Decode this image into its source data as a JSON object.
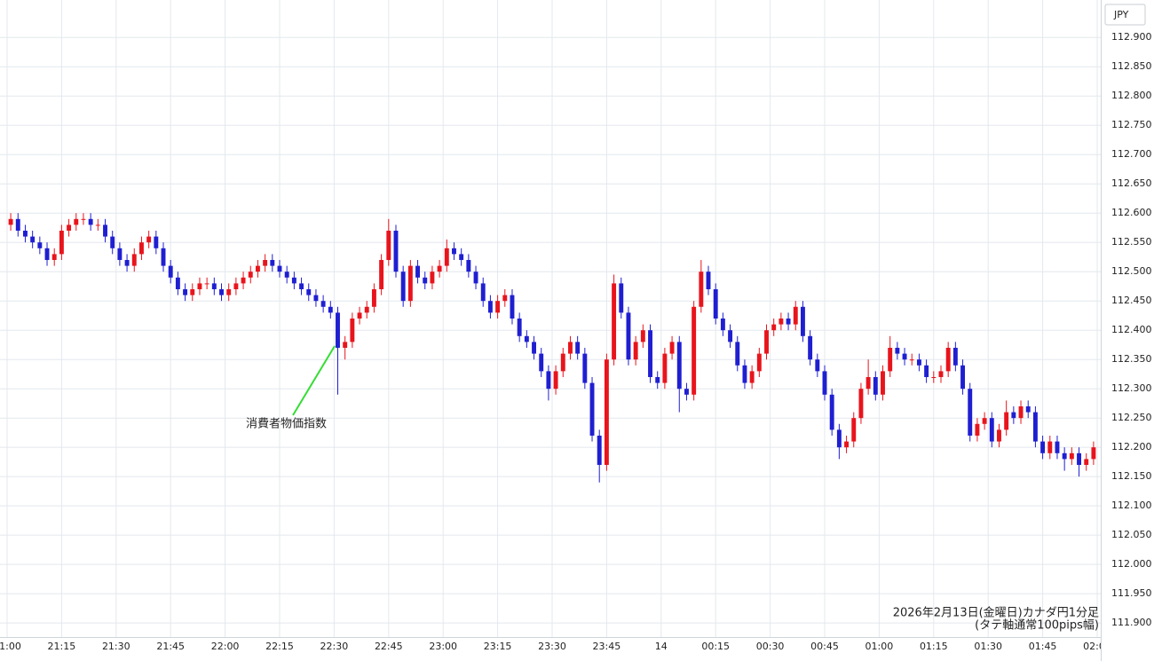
{
  "chart_data": {
    "type": "candlestick",
    "currency_label": "JPY",
    "annotation": "消費者物価指数",
    "notes": [
      "2026年2月13日(金曜日)カナダ円1分足",
      "(タテ軸通常100pips幅)"
    ],
    "up_color": "#e8141c",
    "down_color": "#1f1fd1",
    "grid": true,
    "xlim": [
      0,
      300
    ],
    "xticks": [
      {
        "value": 0,
        "label": "21:00"
      },
      {
        "value": 15,
        "label": "21:15"
      },
      {
        "value": 30,
        "label": "21:30"
      },
      {
        "value": 45,
        "label": "21:45"
      },
      {
        "value": 60,
        "label": "22:00"
      },
      {
        "value": 75,
        "label": "22:15"
      },
      {
        "value": 90,
        "label": "22:30"
      },
      {
        "value": 105,
        "label": "22:45"
      },
      {
        "value": 120,
        "label": "23:00"
      },
      {
        "value": 135,
        "label": "23:15"
      },
      {
        "value": 150,
        "label": "23:30"
      },
      {
        "value": 165,
        "label": "23:45"
      },
      {
        "value": 180,
        "label": "14"
      },
      {
        "value": 195,
        "label": "00:15"
      },
      {
        "value": 210,
        "label": "00:30"
      },
      {
        "value": 225,
        "label": "00:45"
      },
      {
        "value": 240,
        "label": "01:00"
      },
      {
        "value": 255,
        "label": "01:15"
      },
      {
        "value": 270,
        "label": "01:30"
      },
      {
        "value": 285,
        "label": "01:45"
      },
      {
        "value": 300,
        "label": "02:00"
      }
    ],
    "ylim": [
      111.876,
      112.964
    ],
    "yticks": [
      {
        "value": 111.9,
        "label": "111.900"
      },
      {
        "value": 111.95,
        "label": "111.950"
      },
      {
        "value": 112.0,
        "label": "112.000"
      },
      {
        "value": 112.05,
        "label": "112.050"
      },
      {
        "value": 112.1,
        "label": "112.100"
      },
      {
        "value": 112.15,
        "label": "112.150"
      },
      {
        "value": 112.2,
        "label": "112.200"
      },
      {
        "value": 112.25,
        "label": "112.250"
      },
      {
        "value": 112.3,
        "label": "112.300"
      },
      {
        "value": 112.35,
        "label": "112.350"
      },
      {
        "value": 112.4,
        "label": "112.400"
      },
      {
        "value": 112.45,
        "label": "112.450"
      },
      {
        "value": 112.5,
        "label": "112.500"
      },
      {
        "value": 112.55,
        "label": "112.550"
      },
      {
        "value": 112.6,
        "label": "112.600"
      },
      {
        "value": 112.65,
        "label": "112.650"
      },
      {
        "value": 112.7,
        "label": "112.700"
      },
      {
        "value": 112.75,
        "label": "112.750"
      },
      {
        "value": 112.8,
        "label": "112.800"
      },
      {
        "value": 112.85,
        "label": "112.850"
      },
      {
        "value": 112.9,
        "label": "112.900"
      }
    ],
    "x": [
      0,
      2,
      4,
      6,
      8,
      10,
      12,
      14,
      16,
      18,
      20,
      22,
      24,
      26,
      28,
      30,
      32,
      34,
      36,
      38,
      40,
      42,
      44,
      46,
      48,
      50,
      52,
      54,
      56,
      58,
      60,
      62,
      64,
      66,
      68,
      70,
      72,
      74,
      76,
      78,
      80,
      82,
      84,
      86,
      88,
      90,
      92,
      94,
      96,
      98,
      100,
      102,
      104,
      106,
      108,
      110,
      112,
      114,
      116,
      118,
      120,
      122,
      124,
      126,
      128,
      130,
      132,
      134,
      136,
      138,
      140,
      142,
      144,
      146,
      148,
      150,
      152,
      154,
      156,
      158,
      160,
      162,
      164,
      166,
      168,
      170,
      172,
      174,
      176,
      178,
      180,
      182,
      184,
      186,
      188,
      190,
      192,
      194,
      196,
      198,
      200,
      202,
      204,
      206,
      208,
      210,
      212,
      214,
      216,
      218,
      220,
      222,
      224,
      226,
      228,
      230,
      232,
      234,
      236,
      238,
      240,
      242,
      244,
      246,
      248,
      250,
      252,
      254,
      256,
      258,
      260,
      262,
      264,
      266,
      268,
      270,
      272,
      274,
      276,
      278,
      280,
      282,
      284,
      286,
      288,
      290,
      292,
      294,
      296,
      298
    ],
    "ohlc": [
      [
        112.58,
        112.6,
        112.57,
        112.59
      ],
      [
        112.59,
        112.6,
        112.56,
        112.57
      ],
      [
        112.57,
        112.58,
        112.55,
        112.56
      ],
      [
        112.56,
        112.57,
        112.54,
        112.55
      ],
      [
        112.55,
        112.56,
        112.53,
        112.54
      ],
      [
        112.54,
        112.55,
        112.51,
        112.52
      ],
      [
        112.52,
        112.54,
        112.51,
        112.53
      ],
      [
        112.53,
        112.58,
        112.52,
        112.57
      ],
      [
        112.57,
        112.59,
        112.56,
        112.58
      ],
      [
        112.58,
        112.6,
        112.57,
        112.59
      ],
      [
        112.59,
        112.6,
        112.58,
        112.59
      ],
      [
        112.59,
        112.6,
        112.57,
        112.58
      ],
      [
        112.58,
        112.59,
        112.57,
        112.58
      ],
      [
        112.58,
        112.59,
        112.55,
        112.56
      ],
      [
        112.56,
        112.57,
        112.53,
        112.54
      ],
      [
        112.54,
        112.55,
        112.51,
        112.52
      ],
      [
        112.52,
        112.53,
        112.5,
        112.51
      ],
      [
        112.51,
        112.54,
        112.5,
        112.53
      ],
      [
        112.53,
        112.56,
        112.52,
        112.55
      ],
      [
        112.55,
        112.57,
        112.54,
        112.56
      ],
      [
        112.56,
        112.57,
        112.53,
        112.54
      ],
      [
        112.54,
        112.55,
        112.5,
        112.51
      ],
      [
        112.51,
        112.52,
        112.48,
        112.49
      ],
      [
        112.49,
        112.5,
        112.46,
        112.47
      ],
      [
        112.47,
        112.48,
        112.45,
        112.46
      ],
      [
        112.46,
        112.48,
        112.45,
        112.47
      ],
      [
        112.47,
        112.49,
        112.46,
        112.48
      ],
      [
        112.48,
        112.49,
        112.47,
        112.48
      ],
      [
        112.48,
        112.49,
        112.46,
        112.47
      ],
      [
        112.47,
        112.48,
        112.45,
        112.46
      ],
      [
        112.46,
        112.48,
        112.45,
        112.47
      ],
      [
        112.47,
        112.49,
        112.46,
        112.48
      ],
      [
        112.48,
        112.5,
        112.47,
        112.49
      ],
      [
        112.49,
        112.51,
        112.48,
        112.5
      ],
      [
        112.5,
        112.52,
        112.49,
        112.51
      ],
      [
        112.51,
        112.53,
        112.5,
        112.52
      ],
      [
        112.52,
        112.53,
        112.5,
        112.51
      ],
      [
        112.51,
        112.52,
        112.49,
        112.5
      ],
      [
        112.5,
        112.51,
        112.48,
        112.49
      ],
      [
        112.49,
        112.5,
        112.47,
        112.48
      ],
      [
        112.48,
        112.49,
        112.46,
        112.47
      ],
      [
        112.47,
        112.48,
        112.45,
        112.46
      ],
      [
        112.46,
        112.47,
        112.44,
        112.45
      ],
      [
        112.45,
        112.46,
        112.43,
        112.44
      ],
      [
        112.44,
        112.45,
        112.42,
        112.43
      ],
      [
        112.43,
        112.44,
        112.29,
        112.37
      ],
      [
        112.37,
        112.39,
        112.35,
        112.38
      ],
      [
        112.38,
        112.43,
        112.37,
        112.42
      ],
      [
        112.42,
        112.44,
        112.41,
        112.43
      ],
      [
        112.43,
        112.45,
        112.42,
        112.44
      ],
      [
        112.44,
        112.48,
        112.43,
        112.47
      ],
      [
        112.47,
        112.53,
        112.46,
        112.52
      ],
      [
        112.52,
        112.59,
        112.51,
        112.57
      ],
      [
        112.57,
        112.58,
        112.49,
        112.5
      ],
      [
        112.5,
        112.51,
        112.44,
        112.45
      ],
      [
        112.45,
        112.52,
        112.44,
        112.51
      ],
      [
        112.51,
        112.52,
        112.48,
        112.49
      ],
      [
        112.49,
        112.5,
        112.47,
        112.48
      ],
      [
        112.48,
        112.51,
        112.47,
        112.5
      ],
      [
        112.5,
        112.52,
        112.49,
        112.51
      ],
      [
        112.51,
        112.555,
        112.5,
        112.54
      ],
      [
        112.54,
        112.55,
        112.52,
        112.53
      ],
      [
        112.53,
        112.54,
        112.51,
        112.52
      ],
      [
        112.52,
        112.53,
        112.49,
        112.5
      ],
      [
        112.5,
        112.51,
        112.47,
        112.48
      ],
      [
        112.48,
        112.49,
        112.44,
        112.45
      ],
      [
        112.45,
        112.46,
        112.42,
        112.43
      ],
      [
        112.43,
        112.46,
        112.42,
        112.45
      ],
      [
        112.45,
        112.47,
        112.44,
        112.46
      ],
      [
        112.46,
        112.47,
        112.41,
        112.42
      ],
      [
        112.42,
        112.43,
        112.38,
        112.39
      ],
      [
        112.39,
        112.4,
        112.37,
        112.38
      ],
      [
        112.38,
        112.39,
        112.35,
        112.36
      ],
      [
        112.36,
        112.37,
        112.32,
        112.33
      ],
      [
        112.33,
        112.34,
        112.28,
        112.3
      ],
      [
        112.3,
        112.34,
        112.29,
        112.33
      ],
      [
        112.33,
        112.37,
        112.32,
        112.36
      ],
      [
        112.36,
        112.39,
        112.35,
        112.38
      ],
      [
        112.38,
        112.39,
        112.35,
        112.36
      ],
      [
        112.36,
        112.37,
        112.3,
        112.31
      ],
      [
        112.31,
        112.32,
        112.21,
        112.22
      ],
      [
        112.22,
        112.23,
        112.14,
        112.17
      ],
      [
        112.17,
        112.36,
        112.16,
        112.35
      ],
      [
        112.35,
        112.495,
        112.34,
        112.48
      ],
      [
        112.48,
        112.49,
        112.42,
        112.43
      ],
      [
        112.43,
        112.44,
        112.34,
        112.35
      ],
      [
        112.35,
        112.39,
        112.34,
        112.38
      ],
      [
        112.38,
        112.41,
        112.37,
        112.4
      ],
      [
        112.4,
        112.41,
        112.31,
        112.32
      ],
      [
        112.32,
        112.33,
        112.3,
        112.31
      ],
      [
        112.31,
        112.37,
        112.3,
        112.36
      ],
      [
        112.36,
        112.39,
        112.35,
        112.38
      ],
      [
        112.38,
        112.39,
        112.26,
        112.3
      ],
      [
        112.3,
        112.31,
        112.28,
        112.29
      ],
      [
        112.29,
        112.45,
        112.28,
        112.44
      ],
      [
        112.44,
        112.52,
        112.43,
        112.5
      ],
      [
        112.5,
        112.51,
        112.46,
        112.47
      ],
      [
        112.47,
        112.48,
        112.41,
        112.42
      ],
      [
        112.42,
        112.43,
        112.39,
        112.4
      ],
      [
        112.4,
        112.41,
        112.37,
        112.38
      ],
      [
        112.38,
        112.39,
        112.33,
        112.34
      ],
      [
        112.34,
        112.35,
        112.3,
        112.31
      ],
      [
        112.31,
        112.34,
        112.3,
        112.33
      ],
      [
        112.33,
        112.37,
        112.32,
        112.36
      ],
      [
        112.36,
        112.41,
        112.35,
        112.4
      ],
      [
        112.4,
        112.42,
        112.39,
        112.41
      ],
      [
        112.41,
        112.43,
        112.4,
        112.42
      ],
      [
        112.42,
        112.43,
        112.4,
        112.41
      ],
      [
        112.41,
        112.45,
        112.4,
        112.44
      ],
      [
        112.44,
        112.45,
        112.38,
        112.39
      ],
      [
        112.39,
        112.4,
        112.34,
        112.35
      ],
      [
        112.35,
        112.36,
        112.32,
        112.33
      ],
      [
        112.33,
        112.34,
        112.28,
        112.29
      ],
      [
        112.29,
        112.3,
        112.22,
        112.23
      ],
      [
        112.23,
        112.24,
        112.18,
        112.2
      ],
      [
        112.2,
        112.22,
        112.19,
        112.21
      ],
      [
        112.21,
        112.26,
        112.2,
        112.25
      ],
      [
        112.25,
        112.31,
        112.24,
        112.3
      ],
      [
        112.3,
        112.35,
        112.29,
        112.32
      ],
      [
        112.32,
        112.33,
        112.28,
        112.29
      ],
      [
        112.29,
        112.34,
        112.28,
        112.33
      ],
      [
        112.33,
        112.39,
        112.32,
        112.37
      ],
      [
        112.37,
        112.38,
        112.35,
        112.36
      ],
      [
        112.36,
        112.37,
        112.34,
        112.35
      ],
      [
        112.35,
        112.36,
        112.34,
        112.35
      ],
      [
        112.35,
        112.36,
        112.33,
        112.34
      ],
      [
        112.34,
        112.35,
        112.31,
        112.32
      ],
      [
        112.32,
        112.33,
        112.31,
        112.32
      ],
      [
        112.32,
        112.34,
        112.31,
        112.33
      ],
      [
        112.33,
        112.38,
        112.32,
        112.37
      ],
      [
        112.37,
        112.38,
        112.33,
        112.34
      ],
      [
        112.34,
        112.35,
        112.29,
        112.3
      ],
      [
        112.3,
        112.31,
        112.21,
        112.22
      ],
      [
        112.22,
        112.25,
        112.21,
        112.24
      ],
      [
        112.24,
        112.26,
        112.23,
        112.25
      ],
      [
        112.25,
        112.26,
        112.2,
        112.21
      ],
      [
        112.21,
        112.24,
        112.2,
        112.23
      ],
      [
        112.23,
        112.28,
        112.22,
        112.26
      ],
      [
        112.26,
        112.27,
        112.24,
        112.25
      ],
      [
        112.25,
        112.28,
        112.24,
        112.27
      ],
      [
        112.27,
        112.28,
        112.25,
        112.26
      ],
      [
        112.26,
        112.27,
        112.2,
        112.21
      ],
      [
        112.21,
        112.22,
        112.18,
        112.19
      ],
      [
        112.19,
        112.22,
        112.18,
        112.21
      ],
      [
        112.21,
        112.22,
        112.18,
        112.19
      ],
      [
        112.19,
        112.2,
        112.16,
        112.18
      ],
      [
        112.18,
        112.2,
        112.17,
        112.19
      ],
      [
        112.19,
        112.2,
        112.15,
        112.17
      ],
      [
        112.17,
        112.19,
        112.16,
        112.18
      ],
      [
        112.18,
        112.21,
        112.17,
        112.2
      ]
    ]
  }
}
